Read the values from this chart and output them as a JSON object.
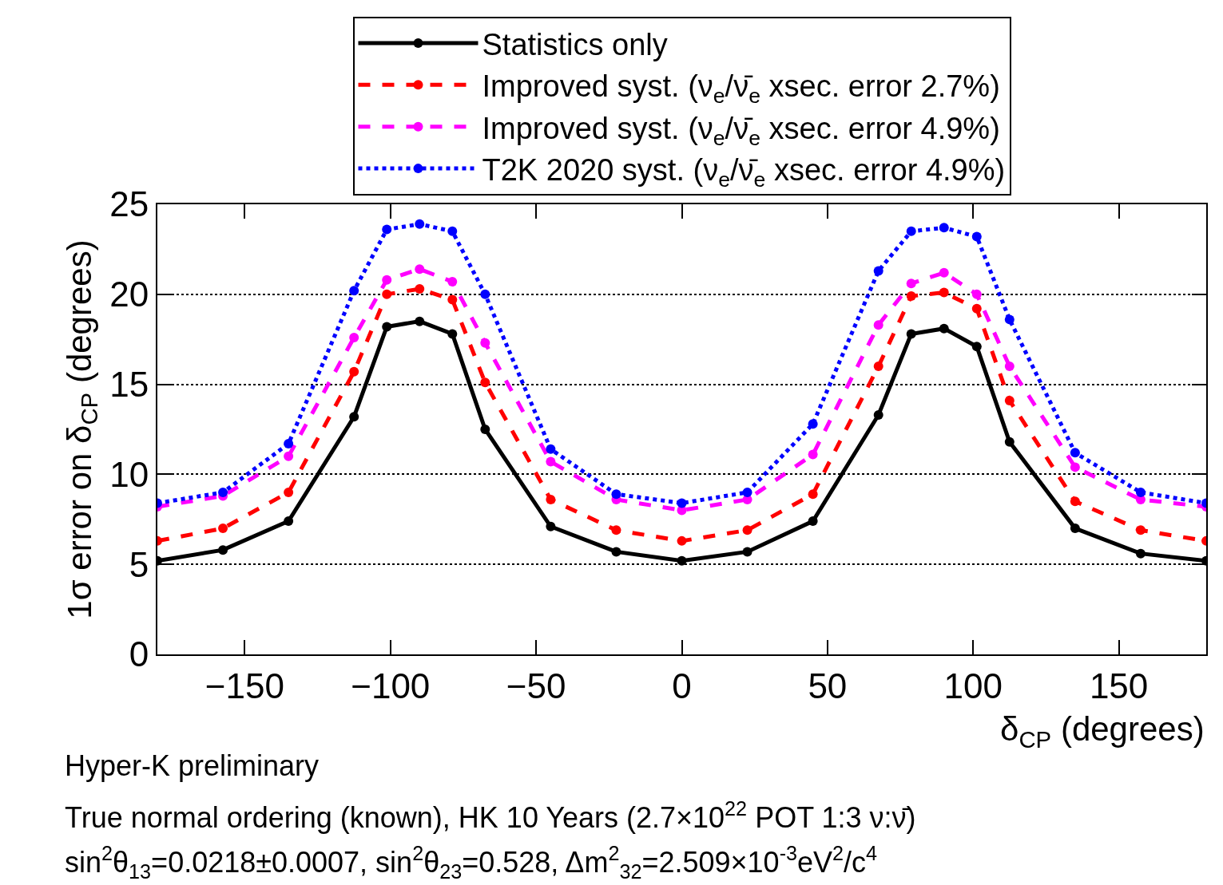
{
  "chart_data": {
    "type": "line",
    "xlabel": "δ$_{CP}$ (degrees)",
    "ylabel": "1σ error on δ$_{CP}$ (degrees)",
    "x": [
      -180,
      -157.5,
      -135,
      -112.5,
      -101.25,
      -90,
      -78.75,
      -67.5,
      -45,
      -22.5,
      0,
      22.5,
      45,
      67.5,
      78.75,
      90,
      101.25,
      112.5,
      135,
      157.5,
      180
    ],
    "series": [
      {
        "name": "Statistics only",
        "color": "#000000",
        "line_style": "solid",
        "values": [
          5.2,
          5.8,
          7.4,
          13.2,
          18.2,
          18.5,
          17.8,
          12.5,
          7.1,
          5.7,
          5.2,
          5.7,
          7.4,
          13.3,
          17.8,
          18.1,
          17.1,
          11.8,
          7.0,
          5.6,
          5.2
        ]
      },
      {
        "name": "Improved syst. (ν$_{e}$/ν̄$_{e}$ xsec. error 2.7%)",
        "color": "#ff0000",
        "line_style": "dashed",
        "values": [
          6.3,
          7.0,
          9.0,
          15.7,
          20.0,
          20.3,
          19.7,
          15.1,
          8.6,
          6.9,
          6.3,
          6.9,
          8.9,
          16.0,
          19.9,
          20.1,
          19.2,
          14.1,
          8.5,
          6.9,
          6.3
        ]
      },
      {
        "name": "Improved syst. (ν$_{e}$/ν̄$_{e}$ xsec. error 4.9%)",
        "color": "#ff00ff",
        "line_style": "dashed",
        "values": [
          8.2,
          8.8,
          11.0,
          17.6,
          20.8,
          21.4,
          20.7,
          17.3,
          10.7,
          8.6,
          8.0,
          8.6,
          11.1,
          18.3,
          20.6,
          21.2,
          20.0,
          16.0,
          10.4,
          8.6,
          8.2
        ]
      },
      {
        "name": "T2K 2020 syst. (ν$_{e}$/ν̄$_{e}$ xsec. error 4.9%)",
        "color": "#0000ff",
        "line_style": "dotted",
        "values": [
          8.4,
          9.0,
          11.7,
          20.2,
          23.6,
          23.9,
          23.5,
          20.0,
          11.4,
          8.9,
          8.4,
          9.0,
          12.8,
          21.3,
          23.5,
          23.7,
          23.2,
          18.6,
          11.2,
          9.0,
          8.4
        ]
      }
    ],
    "xlim": [
      -180,
      180
    ],
    "xticks": [
      -150,
      -100,
      -50,
      0,
      50,
      100,
      150
    ],
    "ylim": [
      0,
      25
    ],
    "yticks": [
      0,
      5,
      10,
      15,
      20,
      25
    ],
    "grid": "y",
    "legend": "top",
    "marker": "circle",
    "annotations": [
      "Hyper-K preliminary",
      "True normal ordering (known), HK 10 Years (2.7×10$^{22}$ POT 1:3 ν:ν̄)",
      "sin$^{2}$θ$_{13}$=0.0218±0.0007, sin$^{2}$θ$_{23}$=0.528, Δm$^{2}$$_{32}$=2.509×10$^{-3}$eV$^{2}$/c$^{4}$"
    ]
  }
}
